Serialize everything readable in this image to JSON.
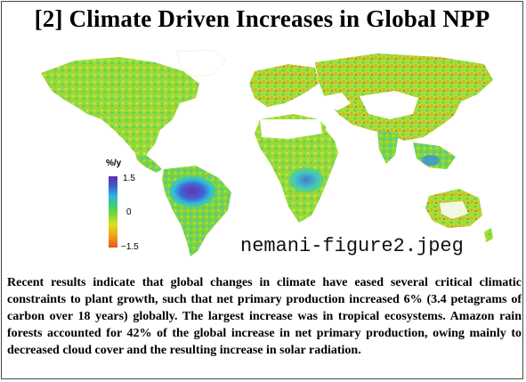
{
  "title": "[2] Climate Driven Increases in Global NPP",
  "legend": {
    "unit": "%/y",
    "max_label": "1.5",
    "mid_label": "0",
    "min_label": "−1.5",
    "colors": [
      "#5a2fa8",
      "#3b5fd1",
      "#2fb6e0",
      "#3fcf6a",
      "#7fd83a",
      "#d9e020",
      "#f0a01a",
      "#e8561a"
    ]
  },
  "image_caption": "nemani-figure2.jpeg",
  "body_text": "Recent results indicate that global changes in climate have eased several critical climatic constraints to plant growth, such that net primary production increased 6% (3.4 petagrams of carbon over 18 years) globally. The largest increase was in tropical ecosystems. Amazon rain forests accounted for 42% of the global increase in net primary production, owing mainly to decreased cloud cover and the resulting increase in solar radiation."
}
